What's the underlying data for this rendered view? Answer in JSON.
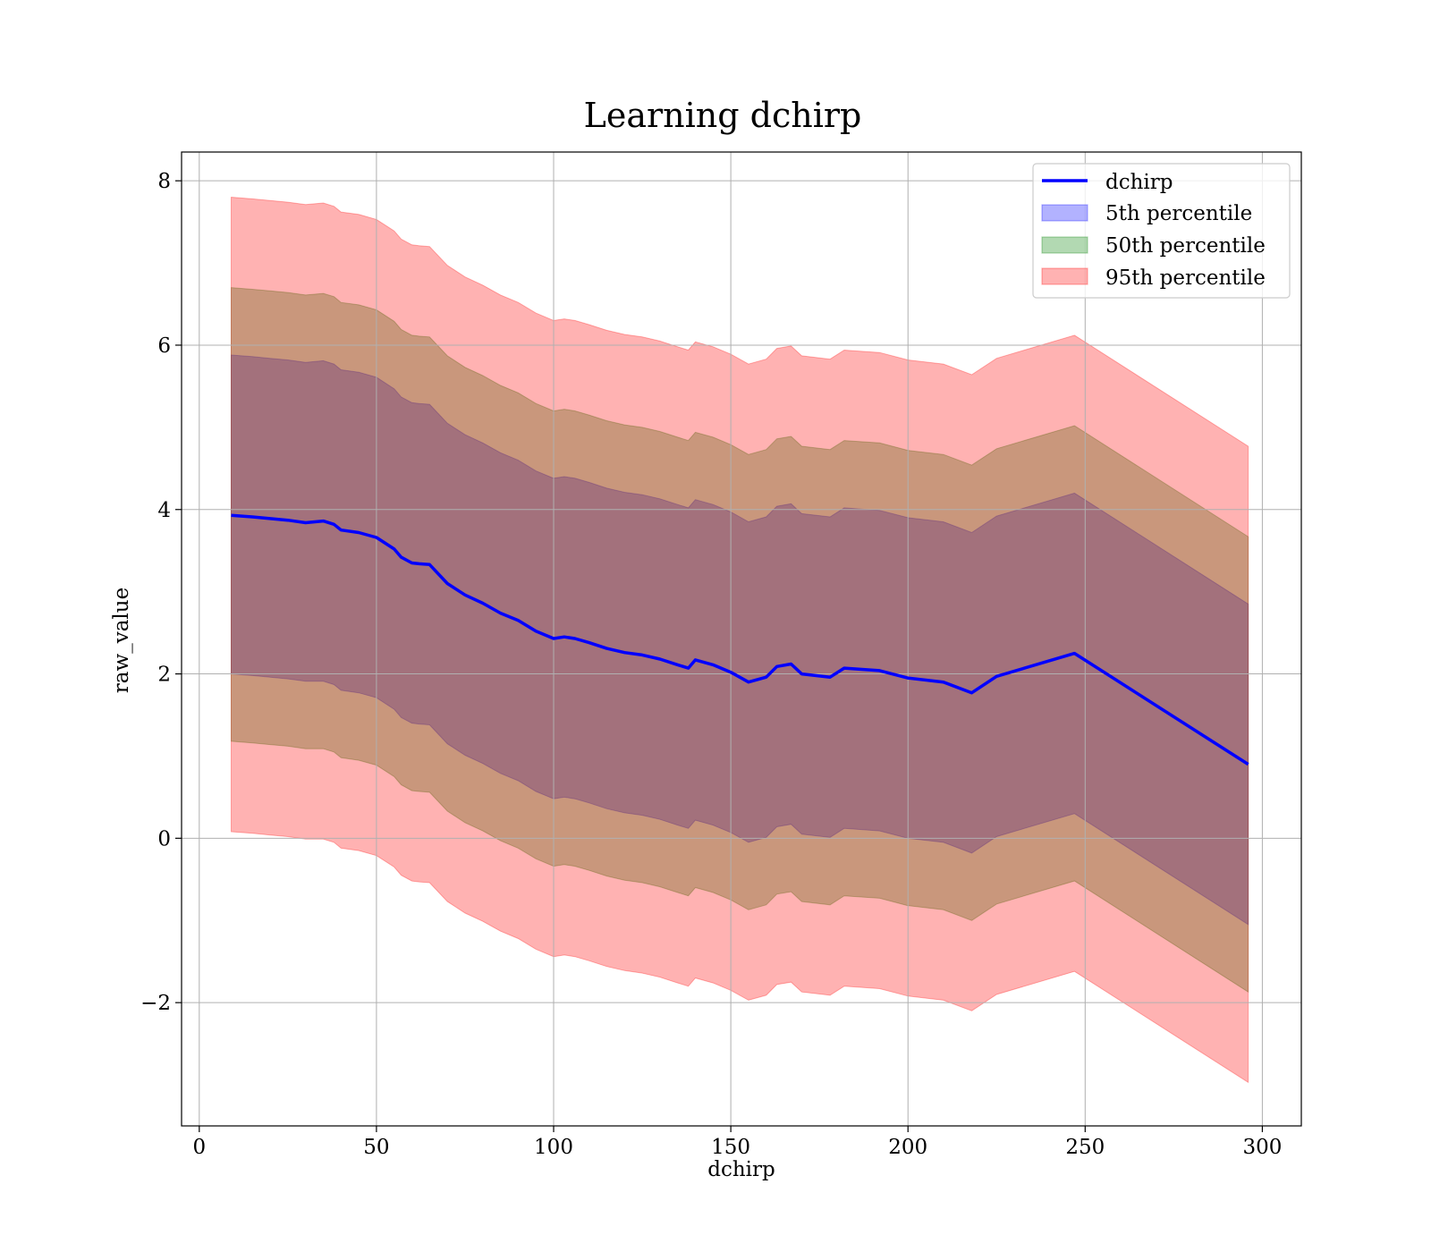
{
  "chart_data": {
    "type": "area",
    "title": "Learning dchirp",
    "xlabel": "dchirp",
    "ylabel": "raw_value",
    "xlim": [
      -5,
      311
    ],
    "ylim": [
      -3.5,
      8.35
    ],
    "xticks": [
      0,
      50,
      100,
      150,
      200,
      250,
      300
    ],
    "yticks": [
      -2,
      0,
      2,
      4,
      6,
      8
    ],
    "ytick_labels": [
      "−2",
      "0",
      "2",
      "4",
      "6",
      "8"
    ],
    "grid": true,
    "legend_position": "top-right",
    "colors": {
      "line": "#0000ff",
      "p5": "#0000ff",
      "p50": "#008000",
      "p95": "#ff0000"
    },
    "x": [
      9,
      15,
      20,
      25,
      30,
      35,
      38,
      40,
      45,
      50,
      55,
      57,
      60,
      62,
      65,
      70,
      75,
      80,
      85,
      90,
      95,
      100,
      103,
      106,
      110,
      115,
      120,
      125,
      130,
      135,
      138,
      140,
      145,
      150,
      155,
      160,
      163,
      167,
      170,
      178,
      182,
      192,
      200,
      210,
      218,
      225,
      247,
      296
    ],
    "series": [
      {
        "name": "dchirp",
        "kind": "line",
        "values": [
          3.93,
          3.91,
          3.89,
          3.87,
          3.84,
          3.86,
          3.82,
          3.75,
          3.72,
          3.66,
          3.52,
          3.42,
          3.35,
          3.34,
          3.33,
          3.1,
          2.96,
          2.86,
          2.74,
          2.65,
          2.52,
          2.43,
          2.45,
          2.43,
          2.38,
          2.31,
          2.26,
          2.23,
          2.18,
          2.11,
          2.07,
          2.17,
          2.11,
          2.02,
          1.9,
          1.96,
          2.09,
          2.12,
          2.0,
          1.96,
          2.07,
          2.04,
          1.95,
          1.9,
          1.77,
          1.97,
          2.25,
          0.9
        ]
      },
      {
        "name": "5th percentile",
        "kind": "band",
        "lower": [
          2.0,
          1.98,
          1.96,
          1.94,
          1.91,
          1.91,
          1.87,
          1.8,
          1.77,
          1.71,
          1.57,
          1.47,
          1.4,
          1.39,
          1.38,
          1.15,
          1.01,
          0.91,
          0.79,
          0.7,
          0.57,
          0.48,
          0.5,
          0.48,
          0.43,
          0.36,
          0.31,
          0.28,
          0.23,
          0.16,
          0.12,
          0.22,
          0.16,
          0.07,
          -0.05,
          0.01,
          0.14,
          0.17,
          0.05,
          0.01,
          0.12,
          0.09,
          0.0,
          -0.05,
          -0.18,
          0.02,
          0.3,
          -1.05
        ],
        "upper": [
          5.88,
          5.86,
          5.84,
          5.82,
          5.79,
          5.81,
          5.77,
          5.7,
          5.67,
          5.61,
          5.47,
          5.37,
          5.3,
          5.29,
          5.28,
          5.05,
          4.91,
          4.81,
          4.69,
          4.6,
          4.47,
          4.38,
          4.4,
          4.38,
          4.33,
          4.26,
          4.21,
          4.18,
          4.13,
          4.06,
          4.02,
          4.12,
          4.06,
          3.97,
          3.85,
          3.91,
          4.04,
          4.07,
          3.95,
          3.91,
          4.02,
          3.99,
          3.9,
          3.85,
          3.72,
          3.92,
          4.2,
          2.85
        ]
      },
      {
        "name": "50th percentile",
        "kind": "band",
        "lower": [
          1.18,
          1.16,
          1.14,
          1.12,
          1.09,
          1.09,
          1.05,
          0.98,
          0.95,
          0.89,
          0.75,
          0.65,
          0.58,
          0.57,
          0.56,
          0.33,
          0.19,
          0.09,
          -0.03,
          -0.12,
          -0.25,
          -0.34,
          -0.32,
          -0.34,
          -0.39,
          -0.46,
          -0.51,
          -0.54,
          -0.59,
          -0.66,
          -0.7,
          -0.6,
          -0.66,
          -0.75,
          -0.87,
          -0.81,
          -0.68,
          -0.65,
          -0.77,
          -0.81,
          -0.7,
          -0.73,
          -0.82,
          -0.87,
          -1.0,
          -0.8,
          -0.52,
          -1.87
        ],
        "upper": [
          6.7,
          6.68,
          6.66,
          6.64,
          6.61,
          6.63,
          6.59,
          6.52,
          6.49,
          6.43,
          6.29,
          6.19,
          6.12,
          6.11,
          6.1,
          5.87,
          5.73,
          5.63,
          5.51,
          5.42,
          5.29,
          5.2,
          5.22,
          5.2,
          5.15,
          5.08,
          5.03,
          5.0,
          4.95,
          4.88,
          4.84,
          4.94,
          4.88,
          4.79,
          4.67,
          4.73,
          4.86,
          4.89,
          4.77,
          4.73,
          4.84,
          4.81,
          4.72,
          4.67,
          4.54,
          4.74,
          5.02,
          3.67
        ]
      },
      {
        "name": "95th percentile",
        "kind": "band",
        "lower": [
          0.08,
          0.06,
          0.04,
          0.02,
          -0.01,
          -0.01,
          -0.05,
          -0.12,
          -0.15,
          -0.21,
          -0.35,
          -0.45,
          -0.52,
          -0.53,
          -0.54,
          -0.77,
          -0.91,
          -1.01,
          -1.13,
          -1.22,
          -1.35,
          -1.44,
          -1.42,
          -1.44,
          -1.49,
          -1.56,
          -1.61,
          -1.64,
          -1.69,
          -1.76,
          -1.8,
          -1.7,
          -1.76,
          -1.85,
          -1.97,
          -1.91,
          -1.78,
          -1.75,
          -1.87,
          -1.91,
          -1.8,
          -1.83,
          -1.92,
          -1.97,
          -2.1,
          -1.9,
          -1.62,
          -2.97
        ],
        "upper": [
          7.8,
          7.78,
          7.76,
          7.74,
          7.71,
          7.73,
          7.69,
          7.62,
          7.59,
          7.53,
          7.39,
          7.29,
          7.22,
          7.21,
          7.2,
          6.97,
          6.83,
          6.73,
          6.61,
          6.52,
          6.39,
          6.3,
          6.32,
          6.3,
          6.25,
          6.18,
          6.13,
          6.1,
          6.05,
          5.98,
          5.94,
          6.04,
          5.98,
          5.89,
          5.77,
          5.83,
          5.96,
          5.99,
          5.87,
          5.83,
          5.94,
          5.91,
          5.82,
          5.77,
          5.64,
          5.84,
          6.12,
          4.77
        ]
      }
    ]
  }
}
